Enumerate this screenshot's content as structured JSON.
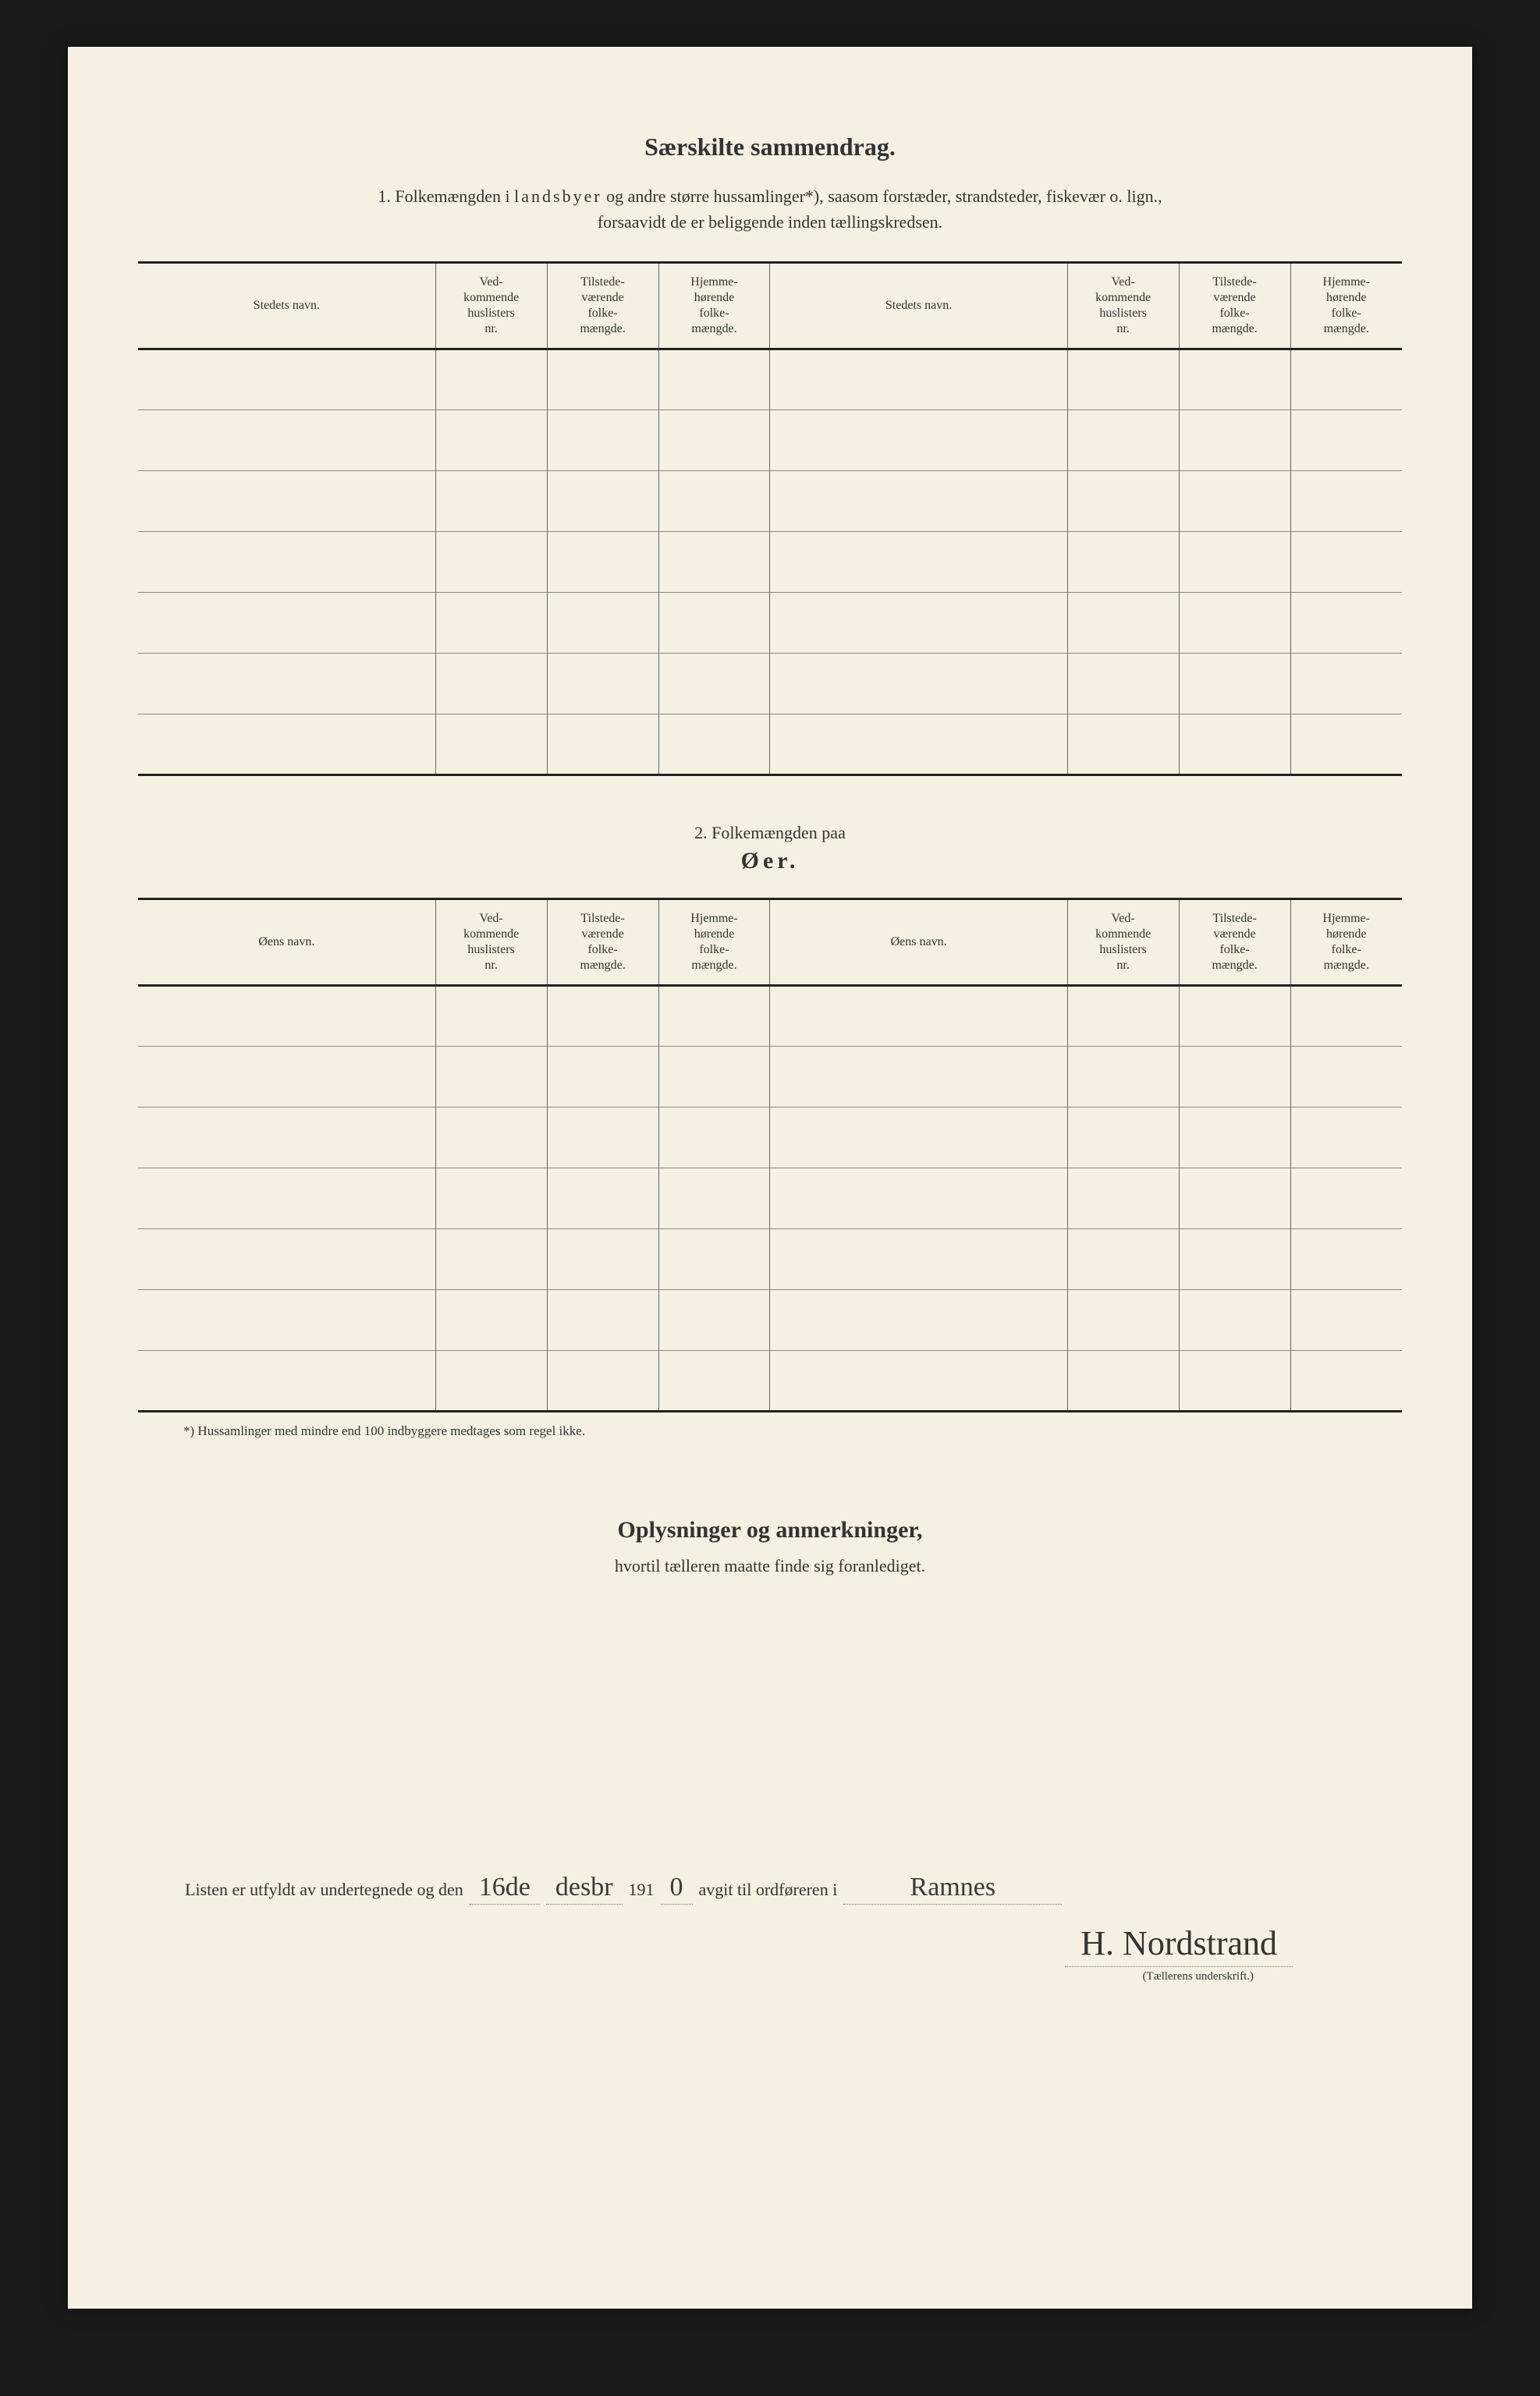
{
  "title": "Særskilte sammendrag.",
  "section1": {
    "prefix": "1.   Folkemængden i ",
    "spaced_word": "landsbyer",
    "line1_rest": " og andre større hussamlinger*), saasom forstæder, strandsteder, fiskevær o. lign.,",
    "line2": "forsaavidt de er beliggende inden tællingskredsen."
  },
  "table_headers": {
    "name1": "Stedets navn.",
    "col_a": "Ved-\nkommende\nhuslisters\nnr.",
    "col_b": "Tilstede-\nværende\nfolke-\nmængde.",
    "col_c": "Hjemme-\nhørende\nfolke-\nmængde."
  },
  "section2": {
    "label": "2.    Folkemængden paa",
    "title": "Øer.",
    "name_header": "Øens navn."
  },
  "footnote": "*)   Hussamlinger med mindre end 100 indbyggere medtages som regel ikke.",
  "oplys": {
    "title": "Oplysninger og anmerkninger,",
    "subtitle": "hvortil tælleren maatte finde sig foranlediget."
  },
  "signature": {
    "prefix": "Listen er utfyldt av undertegnede og den",
    "date_day": "16de",
    "date_month": "desbr",
    "year_prefix": "191",
    "year_last": "0",
    "middle": "avgit til ordføreren i",
    "place": "Ramnes",
    "name": "H. Nordstrand",
    "caption": "(Tællerens underskrift.)"
  },
  "rows_table1": 7,
  "rows_table2": 7
}
